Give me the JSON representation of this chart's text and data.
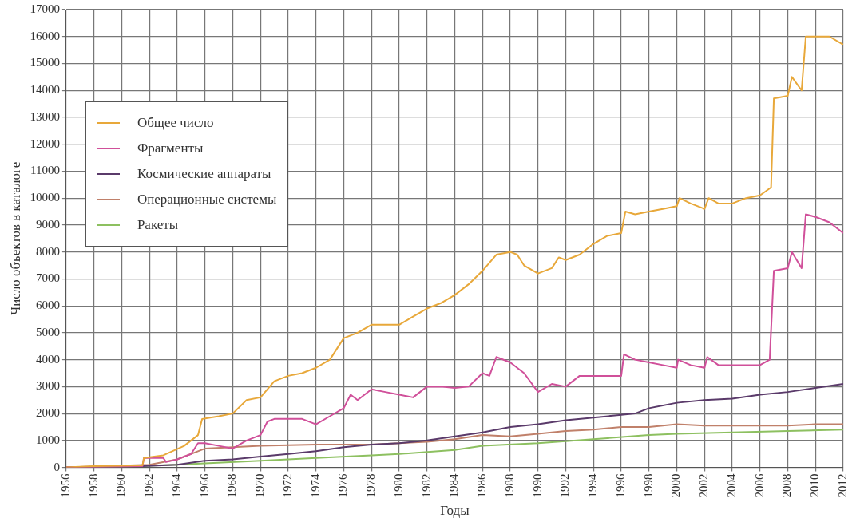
{
  "chart_data": {
    "type": "line",
    "xlabel": "Годы",
    "ylabel": "Число объектов в каталоге",
    "xlim": [
      1956,
      2012
    ],
    "xticks": [
      1956,
      1958,
      1960,
      1962,
      1964,
      1966,
      1968,
      1970,
      1972,
      1974,
      1976,
      1978,
      1980,
      1982,
      1984,
      1986,
      1988,
      1990,
      1992,
      1994,
      1996,
      1998,
      2000,
      2002,
      2004,
      2006,
      2008,
      2010,
      2012
    ],
    "ylim": [
      0,
      17000
    ],
    "yticks": [
      0,
      1000,
      2000,
      3000,
      4000,
      5000,
      6000,
      7000,
      8000,
      9000,
      10000,
      11000,
      12000,
      13000,
      14000,
      15000,
      16000,
      17000
    ],
    "grid": true,
    "legend": "top left",
    "marker": "none",
    "line_style": "solid",
    "series": [
      {
        "name": "Общее число",
        "color": "#e8a83a",
        "x": [
          1956,
          1958,
          1961.5,
          1961.6,
          1963,
          1964.5,
          1965.5,
          1965.8,
          1967,
          1968,
          1969,
          1970,
          1971,
          1972,
          1973,
          1974,
          1975,
          1976,
          1977,
          1978,
          1979,
          1980,
          1981,
          1982,
          1983,
          1984,
          1985,
          1986,
          1987,
          1988,
          1988.5,
          1989,
          1990,
          1991,
          1991.5,
          1992,
          1993,
          1994,
          1995,
          1996,
          1996.3,
          1997,
          1998,
          1999,
          2000,
          2000.2,
          2001,
          2002,
          2002.3,
          2003,
          2004,
          2005,
          2006,
          2006.8,
          2007,
          2008,
          2008.3,
          2009,
          2009.3,
          2010,
          2011,
          2012
        ],
        "values": [
          0,
          50,
          80,
          350,
          450,
          800,
          1200,
          1800,
          1900,
          2000,
          2500,
          2600,
          3200,
          3400,
          3500,
          3700,
          4000,
          4800,
          5000,
          5300,
          5300,
          5300,
          5600,
          5900,
          6100,
          6400,
          6800,
          7300,
          7900,
          8000,
          7900,
          7500,
          7200,
          7400,
          7800,
          7700,
          7900,
          8300,
          8600,
          8700,
          9500,
          9400,
          9500,
          9600,
          9700,
          10000,
          9800,
          9600,
          10000,
          9800,
          9800,
          10000,
          10100,
          10400,
          13700,
          13800,
          14500,
          14000,
          16000,
          16000,
          16000,
          15700
        ]
      },
      {
        "name": "Фрагменты",
        "color": "#d0509a",
        "x": [
          1956,
          1961.5,
          1961.6,
          1963,
          1963.2,
          1964,
          1965,
          1965.5,
          1966,
          1967,
          1968,
          1969,
          1970,
          1970.5,
          1971,
          1972,
          1973,
          1974,
          1975,
          1976,
          1976.5,
          1977,
          1978,
          1979,
          1980,
          1981,
          1982,
          1983,
          1984,
          1985,
          1986,
          1986.5,
          1987,
          1988,
          1989,
          1990,
          1991,
          1992,
          1993,
          1994,
          1995,
          1996,
          1996.2,
          1997,
          1998,
          1999,
          2000,
          2000.1,
          2001,
          2002,
          2002.2,
          2003,
          2004,
          2005,
          2006,
          2006.7,
          2007,
          2008,
          2008.3,
          2009,
          2009.3,
          2010,
          2011,
          2012
        ],
        "values": [
          0,
          50,
          350,
          350,
          200,
          300,
          500,
          900,
          900,
          800,
          700,
          1000,
          1200,
          1700,
          1800,
          1800,
          1800,
          1600,
          1900,
          2200,
          2700,
          2500,
          2900,
          2800,
          2700,
          2600,
          3000,
          3000,
          2950,
          3000,
          3500,
          3400,
          4100,
          3900,
          3500,
          2800,
          3100,
          3000,
          3400,
          3400,
          3400,
          3400,
          4200,
          4000,
          3900,
          3800,
          3700,
          4000,
          3800,
          3700,
          4100,
          3800,
          3800,
          3800,
          3800,
          4000,
          7300,
          7400,
          8000,
          7400,
          9400,
          9300,
          9100,
          8700
        ]
      },
      {
        "name": "Космические аппараты",
        "color": "#5a3a6a",
        "x": [
          1956,
          1960,
          1964,
          1966,
          1968,
          1970,
          1972,
          1974,
          1976,
          1978,
          1980,
          1982,
          1984,
          1986,
          1988,
          1990,
          1992,
          1994,
          1996,
          1997,
          1998,
          2000,
          2002,
          2004,
          2006,
          2008,
          2010,
          2012
        ],
        "values": [
          0,
          20,
          100,
          250,
          300,
          400,
          500,
          600,
          750,
          850,
          900,
          1000,
          1150,
          1300,
          1500,
          1600,
          1750,
          1850,
          1950,
          2000,
          2200,
          2400,
          2500,
          2550,
          2700,
          2800,
          2950,
          3100
        ]
      },
      {
        "name": "Операционные системы",
        "color": "#c0806a",
        "x": [
          1956,
          1962,
          1964,
          1966,
          1968,
          1970,
          1974,
          1978,
          1982,
          1984,
          1986,
          1988,
          1990,
          1992,
          1994,
          1996,
          1998,
          2000,
          2002,
          2006,
          2008,
          2010,
          2012
        ],
        "values": [
          0,
          100,
          300,
          700,
          750,
          800,
          850,
          850,
          950,
          1050,
          1200,
          1150,
          1250,
          1350,
          1400,
          1500,
          1500,
          1600,
          1550,
          1550,
          1550,
          1600,
          1600
        ]
      },
      {
        "name": "Ракеты",
        "color": "#8dc060",
        "x": [
          1956,
          1960,
          1964,
          1966,
          1970,
          1974,
          1978,
          1980,
          1984,
          1986,
          1990,
          1994,
          1998,
          2000,
          2004,
          2008,
          2012
        ],
        "values": [
          0,
          30,
          100,
          150,
          250,
          350,
          450,
          500,
          650,
          800,
          900,
          1050,
          1200,
          1250,
          1300,
          1350,
          1400
        ]
      }
    ]
  }
}
